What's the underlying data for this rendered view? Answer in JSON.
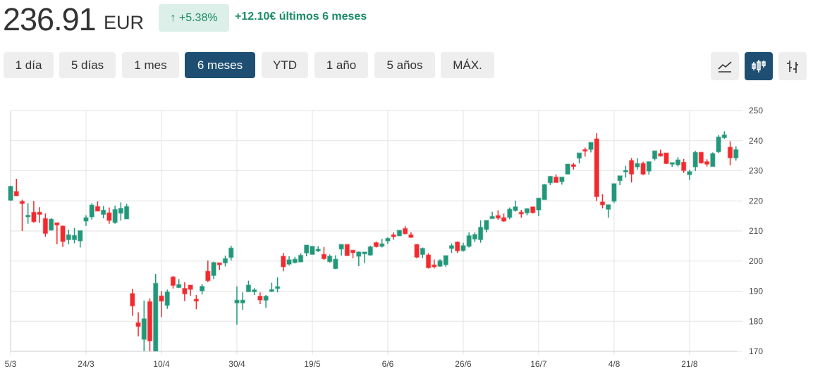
{
  "header": {
    "price": "236.91",
    "currency": "EUR",
    "change_pct": "+5.38%",
    "change_abs": "+12.10€ últimos 6 meses",
    "arrow_icon": "arrow-up-icon"
  },
  "ranges": [
    {
      "label": "1 día",
      "active": false
    },
    {
      "label": "5 días",
      "active": false
    },
    {
      "label": "1 mes",
      "active": false
    },
    {
      "label": "6 meses",
      "active": true
    },
    {
      "label": "YTD",
      "active": false
    },
    {
      "label": "1 año",
      "active": false
    },
    {
      "label": "5 años",
      "active": false
    },
    {
      "label": "MÁX.",
      "active": false
    }
  ],
  "chart_types": [
    {
      "icon": "line-chart-icon",
      "active": false
    },
    {
      "icon": "candlestick-icon",
      "active": true
    },
    {
      "icon": "ohlc-bars-icon",
      "active": false
    }
  ],
  "colors": {
    "up": "#22977a",
    "down": "#f02a2e",
    "active": "#1e4f73",
    "positive_text": "#1b8a68"
  },
  "chart_data": {
    "type": "candlestick",
    "ylim": [
      170,
      250
    ],
    "yticks": [
      250,
      240,
      230,
      220,
      210,
      200,
      190,
      180,
      170
    ],
    "grid": true,
    "y_axis_position": "right",
    "xticks": [
      {
        "label": "5/3",
        "index": 0
      },
      {
        "label": "24/3",
        "index": 13
      },
      {
        "label": "10/4",
        "index": 26
      },
      {
        "label": "30/4",
        "index": 39
      },
      {
        "label": "19/5",
        "index": 52
      },
      {
        "label": "6/6",
        "index": 65
      },
      {
        "label": "26/6",
        "index": 78
      },
      {
        "label": "16/7",
        "index": 91
      },
      {
        "label": "4/8",
        "index": 104
      },
      {
        "label": "21/8",
        "index": 117
      }
    ],
    "ohlc_fields": [
      "open",
      "high",
      "low",
      "close"
    ],
    "candles": [
      [
        220.2,
        225.0,
        220.1,
        224.8
      ],
      [
        223.1,
        227.3,
        221.6,
        221.7
      ],
      [
        219.8,
        220.4,
        210.0,
        219.1
      ],
      [
        214.7,
        219.2,
        212.4,
        215.2
      ],
      [
        216.2,
        220.0,
        212.7,
        213.1
      ],
      [
        216.2,
        217.9,
        212.7,
        215.5
      ],
      [
        214.1,
        215.8,
        208.1,
        209.2
      ],
      [
        210.3,
        214.2,
        210.1,
        213.9
      ],
      [
        212.7,
        212.7,
        205.6,
        212.0
      ],
      [
        211.6,
        211.8,
        204.7,
        206.5
      ],
      [
        207.1,
        210.4,
        205.6,
        208.7
      ],
      [
        207.1,
        211.0,
        205.9,
        208.5
      ],
      [
        206.7,
        210.1,
        204.5,
        210.1
      ],
      [
        213.3,
        215.2,
        211.7,
        214.4
      ],
      [
        214.7,
        219.2,
        213.8,
        218.6
      ],
      [
        218.1,
        219.8,
        216.6,
        216.6
      ],
      [
        215.5,
        218.3,
        214.2,
        216.9
      ],
      [
        216.0,
        217.8,
        212.4,
        213.5
      ],
      [
        212.8,
        218.4,
        212.4,
        217.1
      ],
      [
        215.9,
        219.5,
        213.4,
        217.5
      ],
      [
        214.0,
        219.0,
        214.0,
        218.1
      ],
      [
        189.2,
        190.8,
        181.8,
        185.1
      ],
      [
        179.5,
        183.0,
        175.0,
        178.3
      ],
      [
        174.0,
        186.9,
        169.1,
        180.8
      ],
      [
        186.5,
        187.6,
        169.9,
        173.5
      ],
      [
        169.9,
        195.7,
        169.9,
        192.6
      ],
      [
        188.4,
        190.0,
        181.4,
        186.7
      ],
      [
        185.3,
        190.5,
        184.1,
        189.7
      ],
      [
        194.7,
        195.0,
        190.9,
        191.9
      ],
      [
        191.2,
        194.0,
        191.0,
        192.2
      ],
      [
        190.9,
        193.0,
        186.7,
        189.1
      ],
      [
        192.0,
        192.0,
        188.5,
        190.6
      ],
      [
        187.3,
        188.7,
        184.0,
        186.7
      ],
      [
        190.1,
        192.4,
        188.9,
        191.6
      ],
      [
        196.6,
        200.2,
        193.0,
        193.5
      ],
      [
        195.2,
        199.8,
        194.0,
        199.5
      ],
      [
        199.4,
        199.4,
        197.0,
        198.8
      ],
      [
        199.4,
        201.8,
        198.2,
        200.8
      ],
      [
        201.2,
        205.1,
        200.2,
        204.3
      ],
      [
        186.1,
        191.6,
        178.9,
        187.0
      ],
      [
        186.1,
        189.6,
        183.8,
        187.0
      ],
      [
        189.8,
        193.5,
        189.8,
        192.0
      ],
      [
        189.8,
        191.0,
        188.7,
        190.4
      ],
      [
        188.3,
        189.6,
        185.7,
        187.1
      ],
      [
        187.0,
        188.7,
        184.5,
        188.3
      ],
      [
        189.9,
        192.8,
        189.7,
        190.5
      ],
      [
        190.9,
        194.6,
        189.6,
        191.5
      ],
      [
        201.6,
        202.7,
        196.6,
        198.1
      ],
      [
        199.0,
        201.6,
        198.5,
        200.4
      ],
      [
        199.5,
        201.4,
        199.2,
        200.6
      ],
      [
        199.7,
        202.6,
        199.7,
        201.9
      ],
      [
        202.7,
        205.3,
        201.6,
        205.3
      ],
      [
        202.2,
        204.9,
        202.2,
        204.9
      ],
      [
        203.4,
        204.9,
        203.0,
        203.9
      ],
      [
        202.2,
        204.7,
        200.4,
        200.8
      ],
      [
        199.8,
        202.2,
        199.5,
        201.6
      ],
      [
        197.5,
        201.9,
        197.3,
        200.6
      ],
      [
        204.0,
        205.5,
        201.8,
        205.5
      ],
      [
        205.5,
        205.5,
        201.8,
        201.8
      ],
      [
        203.6,
        203.6,
        200.9,
        202.8
      ],
      [
        201.6,
        203.2,
        198.3,
        203.0
      ],
      [
        202.4,
        203.0,
        199.3,
        203.0
      ],
      [
        202.0,
        205.1,
        201.8,
        204.7
      ],
      [
        206.1,
        206.5,
        204.5,
        204.8
      ],
      [
        204.9,
        207.4,
        204.5,
        205.7
      ],
      [
        206.7,
        207.9,
        205.7,
        207.5
      ],
      [
        208.7,
        209.5,
        207.1,
        208.1
      ],
      [
        208.4,
        210.2,
        208.3,
        210.2
      ],
      [
        210.8,
        211.6,
        208.8,
        209.1
      ],
      [
        208.7,
        209.6,
        207.7,
        207.9
      ],
      [
        205.5,
        205.5,
        200.9,
        201.3
      ],
      [
        202.2,
        204.5,
        201.0,
        204.2
      ],
      [
        202.0,
        202.6,
        197.5,
        197.8
      ],
      [
        198.7,
        200.5,
        197.5,
        198.1
      ],
      [
        198.3,
        200.6,
        198.1,
        200.1
      ],
      [
        198.8,
        201.8,
        198.1,
        201.8
      ],
      [
        204.2,
        205.9,
        202.7,
        205.1
      ],
      [
        206.3,
        206.5,
        202.7,
        203.4
      ],
      [
        203.5,
        206.1,
        203.1,
        205.1
      ],
      [
        204.9,
        209.5,
        204.5,
        208.4
      ],
      [
        207.3,
        209.5,
        206.3,
        208.8
      ],
      [
        207.1,
        213.5,
        206.1,
        211.2
      ],
      [
        210.5,
        213.5,
        209.5,
        213.5
      ],
      [
        214.1,
        216.4,
        214.1,
        214.8
      ],
      [
        215.1,
        216.9,
        213.7,
        214.3
      ],
      [
        214.4,
        215.8,
        213.0,
        213.3
      ],
      [
        214.5,
        217.8,
        213.9,
        217.2
      ],
      [
        216.8,
        220.1,
        216.4,
        218.0
      ],
      [
        216.2,
        217.0,
        214.4,
        215.7
      ],
      [
        216.0,
        217.5,
        215.2,
        217.4
      ],
      [
        218.0,
        218.0,
        215.8,
        216.1
      ],
      [
        217.0,
        220.9,
        214.9,
        220.9
      ],
      [
        220.4,
        225.6,
        220.4,
        225.4
      ],
      [
        226.0,
        228.3,
        225.2,
        228.1
      ],
      [
        227.9,
        228.8,
        226.0,
        226.1
      ],
      [
        226.4,
        227.9,
        225.4,
        227.9
      ],
      [
        228.9,
        232.2,
        228.9,
        232.2
      ],
      [
        232.0,
        232.6,
        230.4,
        231.4
      ],
      [
        234.2,
        235.9,
        232.4,
        235.9
      ],
      [
        237.0,
        237.7,
        234.7,
        236.6
      ],
      [
        237.1,
        239.4,
        236.1,
        239.4
      ],
      [
        240.6,
        242.5,
        219.9,
        221.4
      ],
      [
        219.6,
        222.2,
        217.5,
        218.7
      ],
      [
        217.2,
        218.7,
        214.4,
        218.7
      ],
      [
        219.9,
        225.7,
        219.3,
        225.7
      ],
      [
        226.7,
        228.3,
        225.2,
        228.3
      ],
      [
        229.7,
        231.6,
        227.7,
        230.1
      ],
      [
        233.4,
        234.2,
        226.1,
        228.9
      ],
      [
        231.3,
        234.2,
        230.4,
        232.4
      ],
      [
        232.4,
        233.0,
        228.5,
        228.9
      ],
      [
        229.9,
        233.0,
        228.7,
        233.0
      ],
      [
        234.0,
        236.6,
        233.4,
        236.6
      ],
      [
        235.7,
        237.0,
        234.7,
        234.9
      ],
      [
        235.9,
        235.9,
        232.2,
        232.4
      ],
      [
        232.2,
        232.7,
        231.3,
        232.7
      ],
      [
        232.0,
        234.5,
        231.4,
        233.6
      ],
      [
        232.8,
        233.9,
        229.3,
        230.1
      ],
      [
        228.7,
        230.3,
        227.0,
        229.7
      ],
      [
        231.3,
        236.6,
        229.9,
        236.1
      ],
      [
        236.1,
        236.3,
        232.4,
        232.6
      ],
      [
        233.0,
        233.8,
        231.4,
        232.2
      ],
      [
        231.4,
        236.1,
        231.4,
        235.7
      ],
      [
        236.3,
        241.8,
        235.9,
        241.2
      ],
      [
        241.0,
        243.1,
        240.6,
        241.9
      ],
      [
        237.8,
        239.8,
        231.8,
        234.3
      ],
      [
        234.3,
        238.1,
        233.4,
        237.0
      ]
    ]
  }
}
